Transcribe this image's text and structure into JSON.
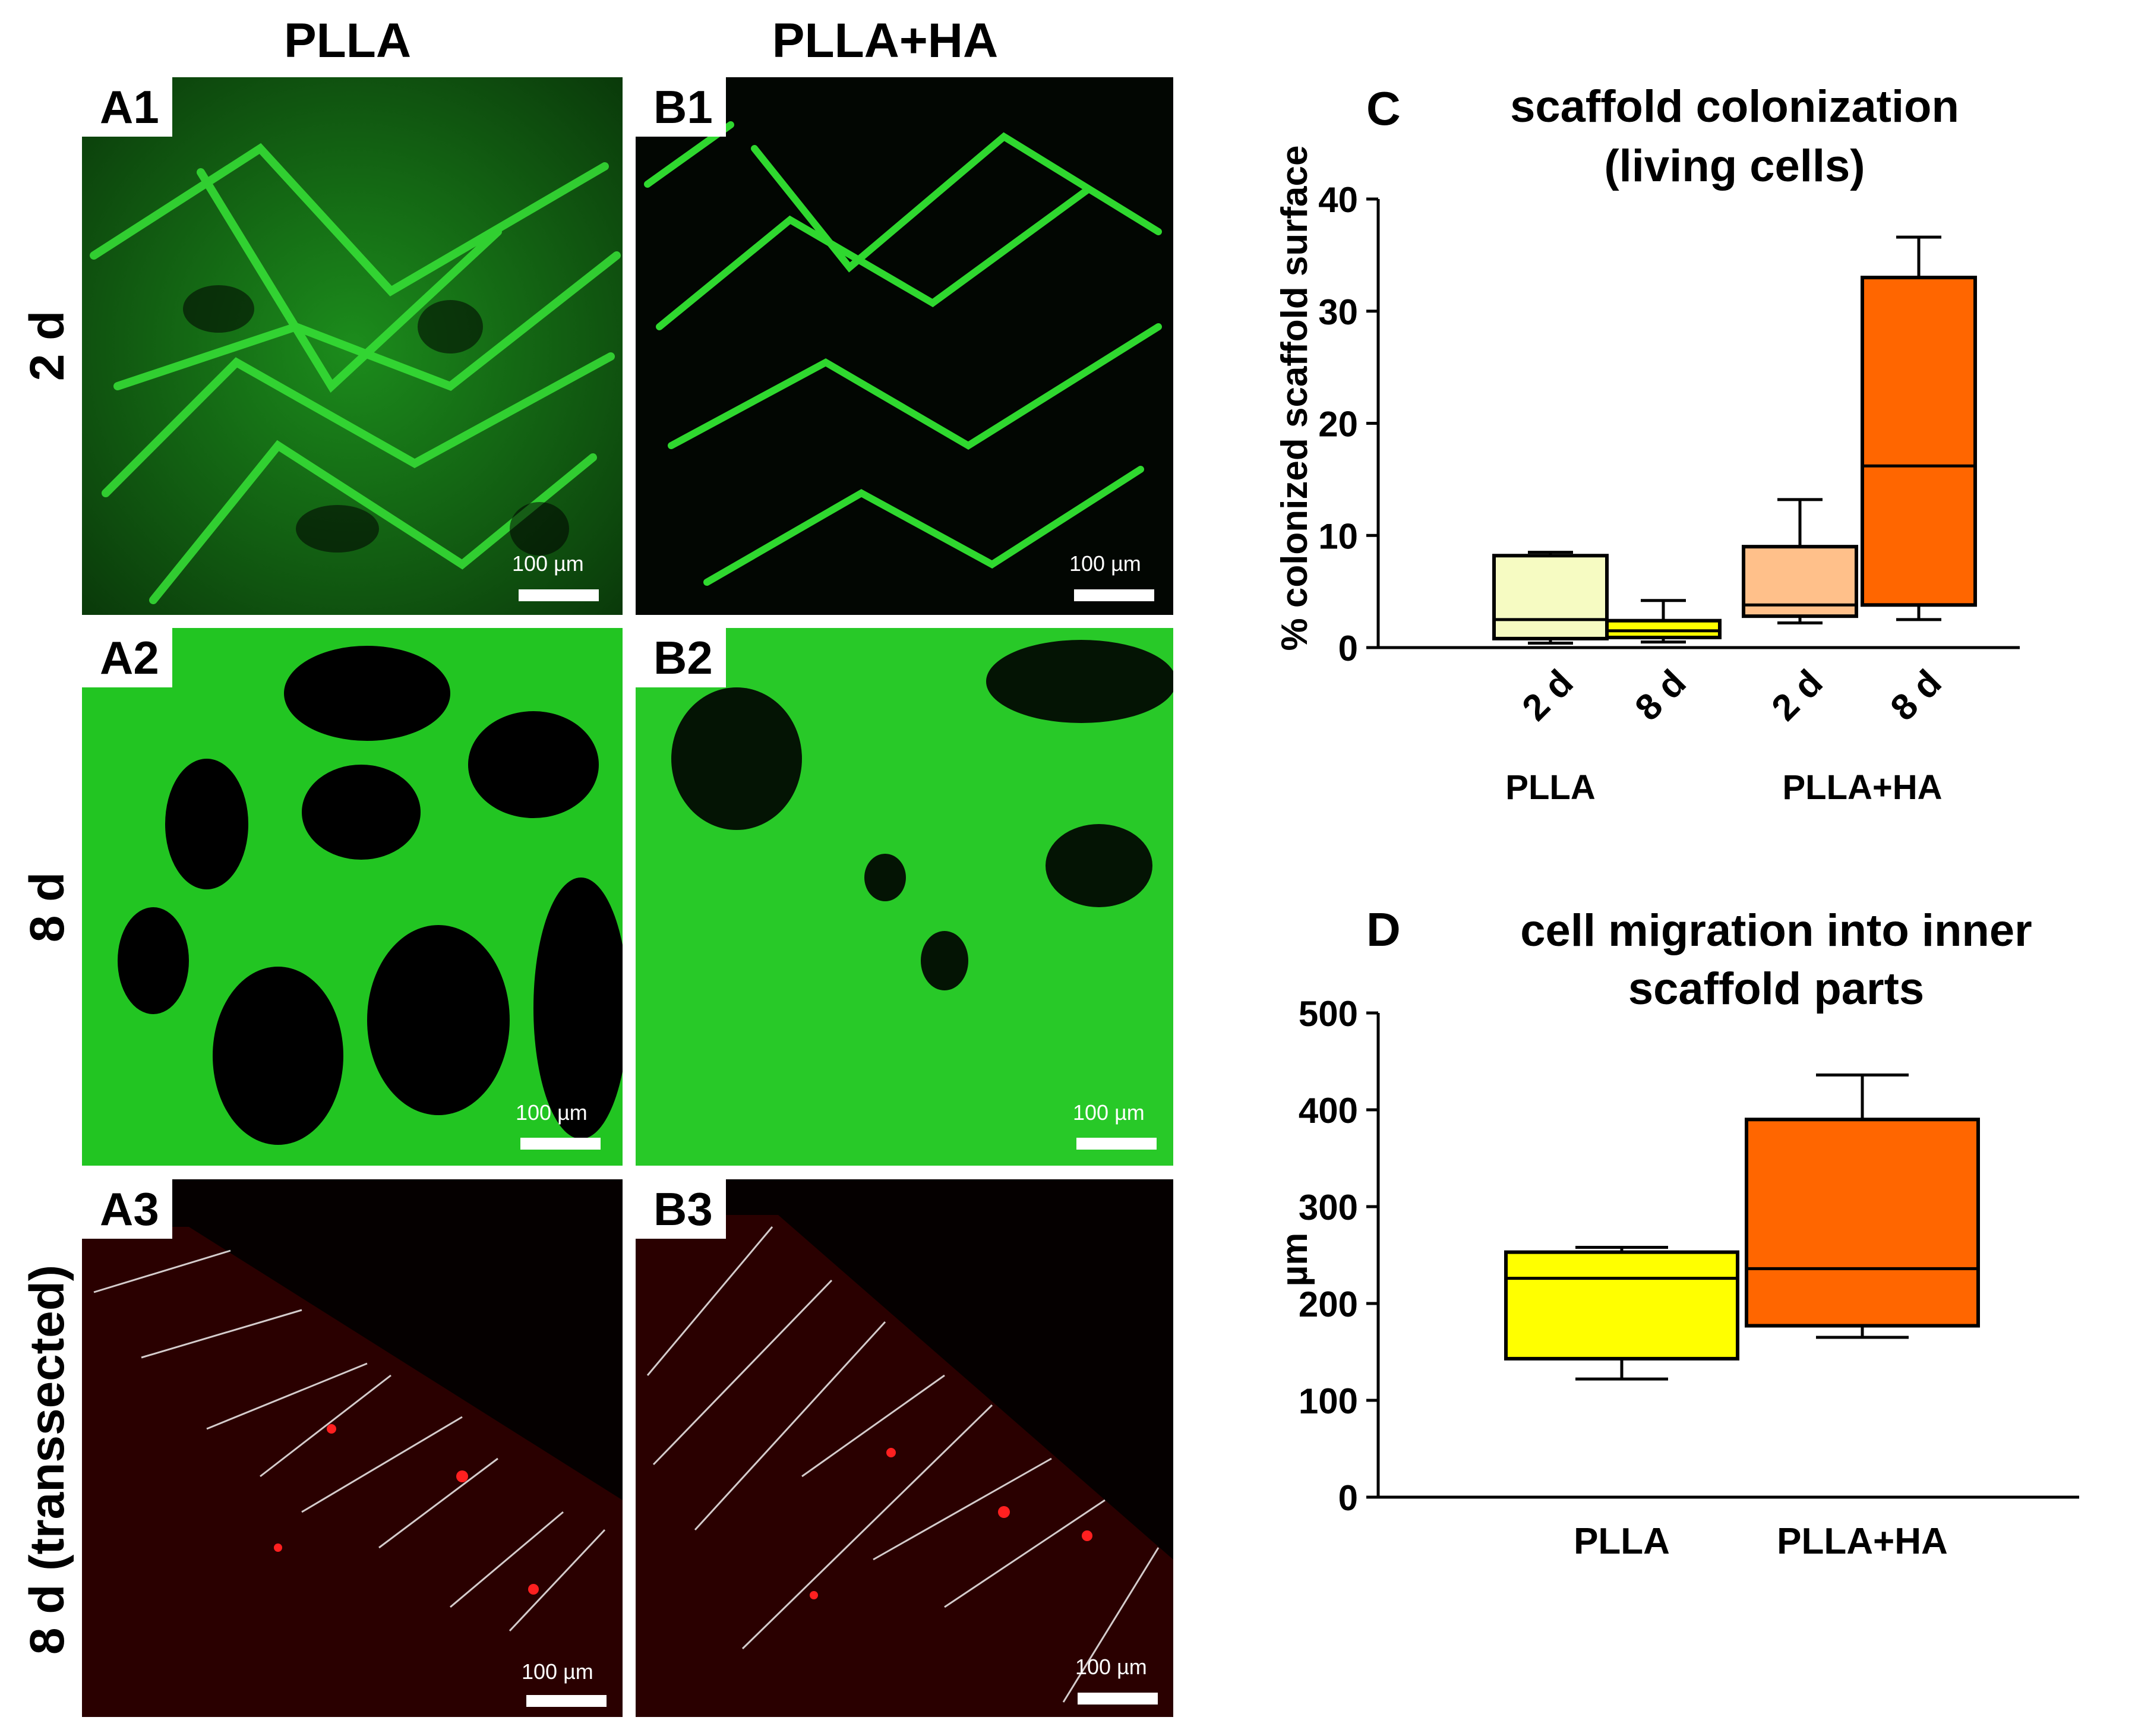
{
  "columns": {
    "left": "PLLA",
    "right": "PLLA+HA"
  },
  "rows": [
    "2 d",
    "8 d",
    "8 d  (transsected)"
  ],
  "panels": [
    {
      "id": "A1",
      "scale": "100 µm"
    },
    {
      "id": "B1",
      "scale": "100 µm"
    },
    {
      "id": "A2",
      "scale": "100 µm"
    },
    {
      "id": "B2",
      "scale": "100 µm"
    },
    {
      "id": "A3",
      "scale": "100 µm"
    },
    {
      "id": "B3",
      "scale": "100 µm"
    }
  ],
  "colors": {
    "green": "#22d022",
    "red": "#ff1a1a",
    "light_yellow": "#f6fbc2",
    "yellow": "#ffff00",
    "peach": "#ffc08a",
    "orange": "#ff6600"
  },
  "chart_data": [
    {
      "panel": "C",
      "type": "box",
      "title": [
        "scaffold colonization",
        "(living cells)"
      ],
      "ylabel": "% colonized scaffold surface",
      "ylim": [
        0,
        40
      ],
      "yticks": [
        0,
        10,
        20,
        30,
        40
      ],
      "groups": [
        "PLLA",
        "PLLA+HA"
      ],
      "boxes": [
        {
          "group": "PLLA",
          "label": "2 d",
          "min": 0.4,
          "q1": 0.8,
          "median": 2.5,
          "q3": 8.2,
          "max": 8.5,
          "color": "#f6fbc2"
        },
        {
          "group": "PLLA",
          "label": "8 d",
          "min": 0.5,
          "q1": 0.9,
          "median": 1.5,
          "q3": 2.4,
          "max": 4.2,
          "color": "#ffff00"
        },
        {
          "group": "PLLA+HA",
          "label": "2 d",
          "min": 2.2,
          "q1": 2.8,
          "median": 3.8,
          "q3": 9.0,
          "max": 13.2,
          "color": "#ffc08a"
        },
        {
          "group": "PLLA+HA",
          "label": "8 d",
          "min": 2.5,
          "q1": 3.8,
          "median": 16.2,
          "q3": 33.0,
          "max": 36.6,
          "color": "#ff6600"
        }
      ]
    },
    {
      "panel": "D",
      "type": "box",
      "title": [
        "cell migration into inner",
        "scaffold parts"
      ],
      "ylabel": "µm",
      "ylim": [
        0,
        500
      ],
      "yticks": [
        0,
        100,
        200,
        300,
        400,
        500
      ],
      "boxes": [
        {
          "label": "PLLA",
          "min": 122,
          "q1": 143,
          "median": 226,
          "q3": 253,
          "max": 258,
          "color": "#ffff00"
        },
        {
          "label": "PLLA+HA",
          "min": 165,
          "q1": 177,
          "median": 236,
          "q3": 390,
          "max": 436,
          "color": "#ff6600"
        }
      ]
    }
  ]
}
